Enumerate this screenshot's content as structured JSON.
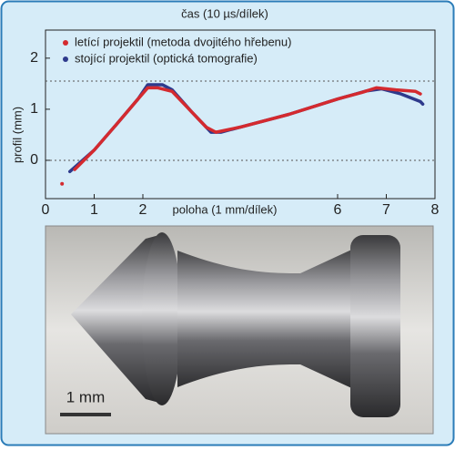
{
  "chart_data": {
    "type": "line",
    "title": "čas (10 µs/dílek)",
    "x_label": "poloha (1 mm/dílek)",
    "y_label": "profil (mm)",
    "xlim": [
      0,
      8
    ],
    "xticks": [
      0,
      1,
      2,
      6,
      7,
      8
    ],
    "ylim": [
      -0.75,
      2.55
    ],
    "yticks": [
      0,
      1,
      2
    ],
    "reference_lines": [
      0,
      1.55
    ],
    "legend": "upper-left",
    "series": [
      {
        "name": "letící projektil (metoda dvojitého hřebenu)",
        "color": "#d42a2f",
        "x": [
          0.34,
          null,
          0.6,
          1.0,
          1.5,
          1.9,
          2.1,
          2.3,
          2.6,
          3.0,
          3.3,
          3.5,
          4.0,
          5.0,
          6.0,
          6.5,
          6.8,
          7.2,
          7.6,
          7.7
        ],
        "values": [
          -0.46,
          null,
          -0.18,
          0.2,
          0.75,
          1.2,
          1.42,
          1.42,
          1.35,
          0.95,
          0.65,
          0.55,
          0.65,
          0.9,
          1.2,
          1.33,
          1.42,
          1.38,
          1.35,
          1.3
        ]
      },
      {
        "name": "stojící projektil (optická tomografie)",
        "color": "#2e3a8c",
        "x": [
          0.5,
          1.0,
          1.5,
          1.9,
          2.1,
          2.4,
          2.6,
          3.0,
          3.4,
          3.6,
          4.0,
          5.0,
          6.0,
          6.6,
          6.9,
          7.3,
          7.7,
          7.75
        ],
        "values": [
          -0.22,
          0.2,
          0.75,
          1.2,
          1.48,
          1.48,
          1.38,
          0.95,
          0.55,
          0.55,
          0.65,
          0.9,
          1.2,
          1.36,
          1.4,
          1.3,
          1.15,
          1.1
        ]
      }
    ]
  },
  "photo": {
    "scale_label": "1 mm"
  }
}
